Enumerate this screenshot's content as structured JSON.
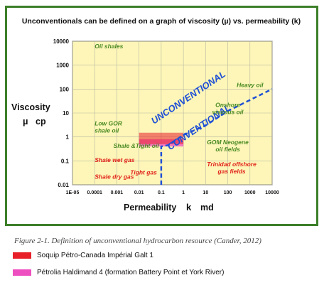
{
  "chart_data": {
    "type": "scatter",
    "title": "Unconventionals can be defined on a graph of  viscosity (µ)  vs.  permeability (k)",
    "xlabel": "Permeability",
    "xlabel_symbol": "k",
    "xlabel_unit": "md",
    "ylabel": "Viscosity",
    "ylabel_symbol": "µ",
    "ylabel_unit": "cp",
    "x_scale": "log",
    "y_scale": "log",
    "xlim": [
      1e-05,
      10000
    ],
    "ylim": [
      0.01,
      10000
    ],
    "x_ticks": [
      {
        "value": 1e-05,
        "label": "1E-05"
      },
      {
        "value": 0.0001,
        "label": "0.0001"
      },
      {
        "value": 0.001,
        "label": "0.001"
      },
      {
        "value": 0.01,
        "label": "0.01"
      },
      {
        "value": 0.1,
        "label": "0.1"
      },
      {
        "value": 1,
        "label": "1"
      },
      {
        "value": 10,
        "label": "10"
      },
      {
        "value": 100,
        "label": "100"
      },
      {
        "value": 1000,
        "label": "1000"
      },
      {
        "value": 10000,
        "label": "10000"
      }
    ],
    "y_ticks": [
      {
        "value": 0.01,
        "label": "0.01"
      },
      {
        "value": 0.1,
        "label": "0.1"
      },
      {
        "value": 1,
        "label": "1"
      },
      {
        "value": 10,
        "label": "10"
      },
      {
        "value": 100,
        "label": "100"
      },
      {
        "value": 1000,
        "label": "1000"
      },
      {
        "value": 10000,
        "label": "10000"
      }
    ],
    "grid": true,
    "plot_background": "#fdf6b8",
    "regions": [
      {
        "label": "Oil shales",
        "x": 0.0001,
        "y": 5000,
        "color": "#4a8a22"
      },
      {
        "label": "Heavy oil",
        "x": 1000,
        "y": 120,
        "color": "#4a8a22"
      },
      {
        "label": "Onshore\nviscous oil",
        "x": 100,
        "y": 18,
        "color": "#4a8a22"
      },
      {
        "label": "Low GOR\nshale oil",
        "x": 0.0001,
        "y": 3,
        "color": "#4a8a22"
      },
      {
        "label": "Shale &Tight oil",
        "x": 0.0007,
        "y": 0.35,
        "color": "#4a8a22"
      },
      {
        "label": "GOM Neogene\noil fields",
        "x": 100,
        "y": 0.5,
        "color": "#4a8a22"
      },
      {
        "label": "Shale wet gas",
        "x": 0.0001,
        "y": 0.09,
        "color": "#e2231a"
      },
      {
        "label": "Shale dry gas",
        "x": 0.0001,
        "y": 0.018,
        "color": "#e2231a"
      },
      {
        "label": "Tight gas",
        "x": 0.004,
        "y": 0.027,
        "color": "#e2231a"
      },
      {
        "label": "Trinidad offshore\ngas fields",
        "x": 150,
        "y": 0.06,
        "color": "#e2231a"
      }
    ],
    "diagonal_labels": [
      {
        "label": "UNCONVENTIONAL",
        "x": 2,
        "y": 35,
        "angle": -34,
        "color": "#1f4fd6"
      },
      {
        "label": "CONVENTIONAL",
        "x": 6,
        "y": 2,
        "angle": -34,
        "color": "#1f4fd6"
      }
    ],
    "boundary": [
      {
        "x": 0.1,
        "y": 0.01
      },
      {
        "x": 0.1,
        "y": 0.4
      },
      {
        "x": 0.2,
        "y": 0.45
      },
      {
        "x": 1,
        "y": 1.2
      },
      {
        "x": 10,
        "y": 3
      },
      {
        "x": 100,
        "y": 12
      },
      {
        "x": 1000,
        "y": 35
      },
      {
        "x": 10000,
        "y": 100
      }
    ],
    "boundary_color": "#1f4fd6",
    "series": [
      {
        "name": "Soquip Pétro-Canada Impérial Galt 1",
        "color": "#e8202a",
        "x_range": [
          0.01,
          1
        ],
        "y_range": [
          0.5,
          1.5
        ]
      },
      {
        "name": "Pétrolia Haldimand 4 (formation Battery Point et York River)",
        "color": "#ee4fc0",
        "x_range": [
          0.01,
          1
        ],
        "y_range": [
          0.4,
          0.8
        ]
      }
    ]
  },
  "caption": "Figure 2-1. Definition of unconventional hydrocarbon resource (Cander, 2012)"
}
